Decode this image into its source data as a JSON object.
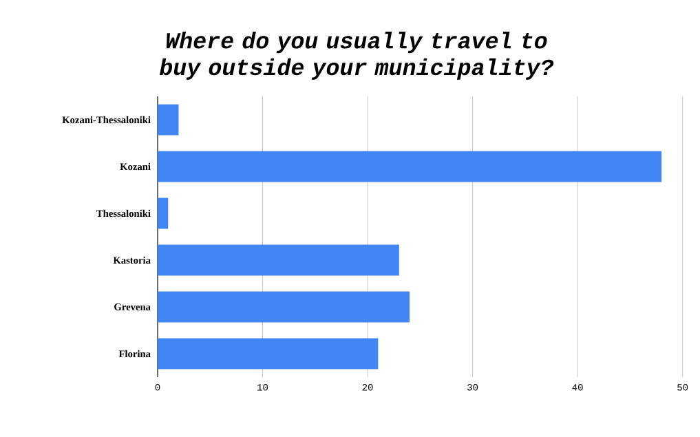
{
  "chart_data": {
    "type": "bar",
    "orientation": "horizontal",
    "title": "Where do you usually travel to buy outside your municipality?",
    "categories": [
      "Kozani-Thessaloniki",
      "Kozani",
      "Thessaloniki",
      "Kastoria",
      "Grevena",
      "Florina"
    ],
    "values": [
      2,
      48,
      1,
      23,
      24,
      21
    ],
    "color": "#4285f4",
    "xlim": [
      0,
      50
    ],
    "xticks": [
      0,
      10,
      20,
      30,
      40,
      50
    ],
    "grid": "x"
  }
}
